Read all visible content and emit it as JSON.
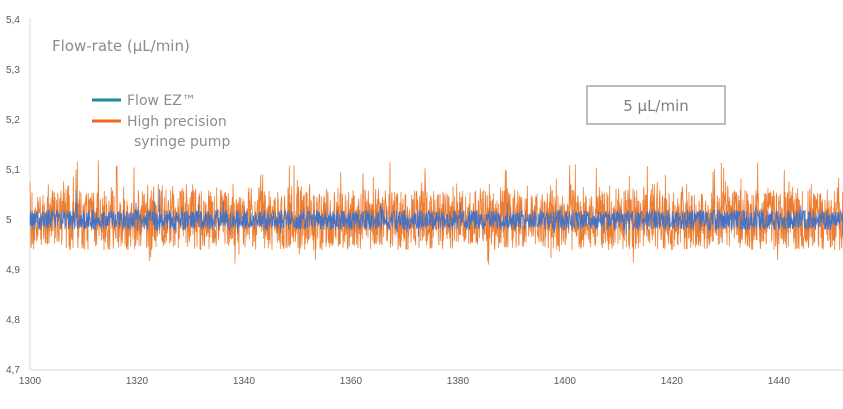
{
  "chart_data": {
    "type": "line",
    "title": "Flow-rate (µL/min)",
    "xlabel": "",
    "ylabel": "",
    "xlim": [
      1300,
      1452
    ],
    "ylim": [
      4.7,
      5.4
    ],
    "x_ticks": [
      "1300",
      "1320",
      "1340",
      "1360",
      "1380",
      "1400",
      "1420",
      "1440"
    ],
    "x_tick_values": [
      1300,
      1320,
      1340,
      1360,
      1380,
      1400,
      1420,
      1440
    ],
    "y_ticks": [
      "4,7",
      "4,8",
      "4,9",
      "5",
      "5,1",
      "5,2",
      "5,3",
      "5,4"
    ],
    "y_tick_values": [
      4.7,
      4.8,
      4.9,
      5.0,
      5.1,
      5.2,
      5.3,
      5.4
    ],
    "grid": false,
    "legend_position": "top-left",
    "legend": [
      {
        "label": "Flow EZ™",
        "color": "#1a8f9a"
      },
      {
        "label": "High precision",
        "label2": "syringe pump",
        "color": "#f26522"
      }
    ],
    "annotation": "5 µL/min",
    "series": [
      {
        "name": "High precision syringe pump",
        "color": "#ed7d31",
        "nominal": 5.0,
        "min": 4.9,
        "max": 5.12,
        "typical_band": [
          4.94,
          5.06
        ]
      },
      {
        "name": "Flow EZ™",
        "color": "#4472c4",
        "nominal": 5.0,
        "min": 4.96,
        "max": 5.08,
        "typical_band": [
          4.98,
          5.02
        ]
      }
    ]
  }
}
